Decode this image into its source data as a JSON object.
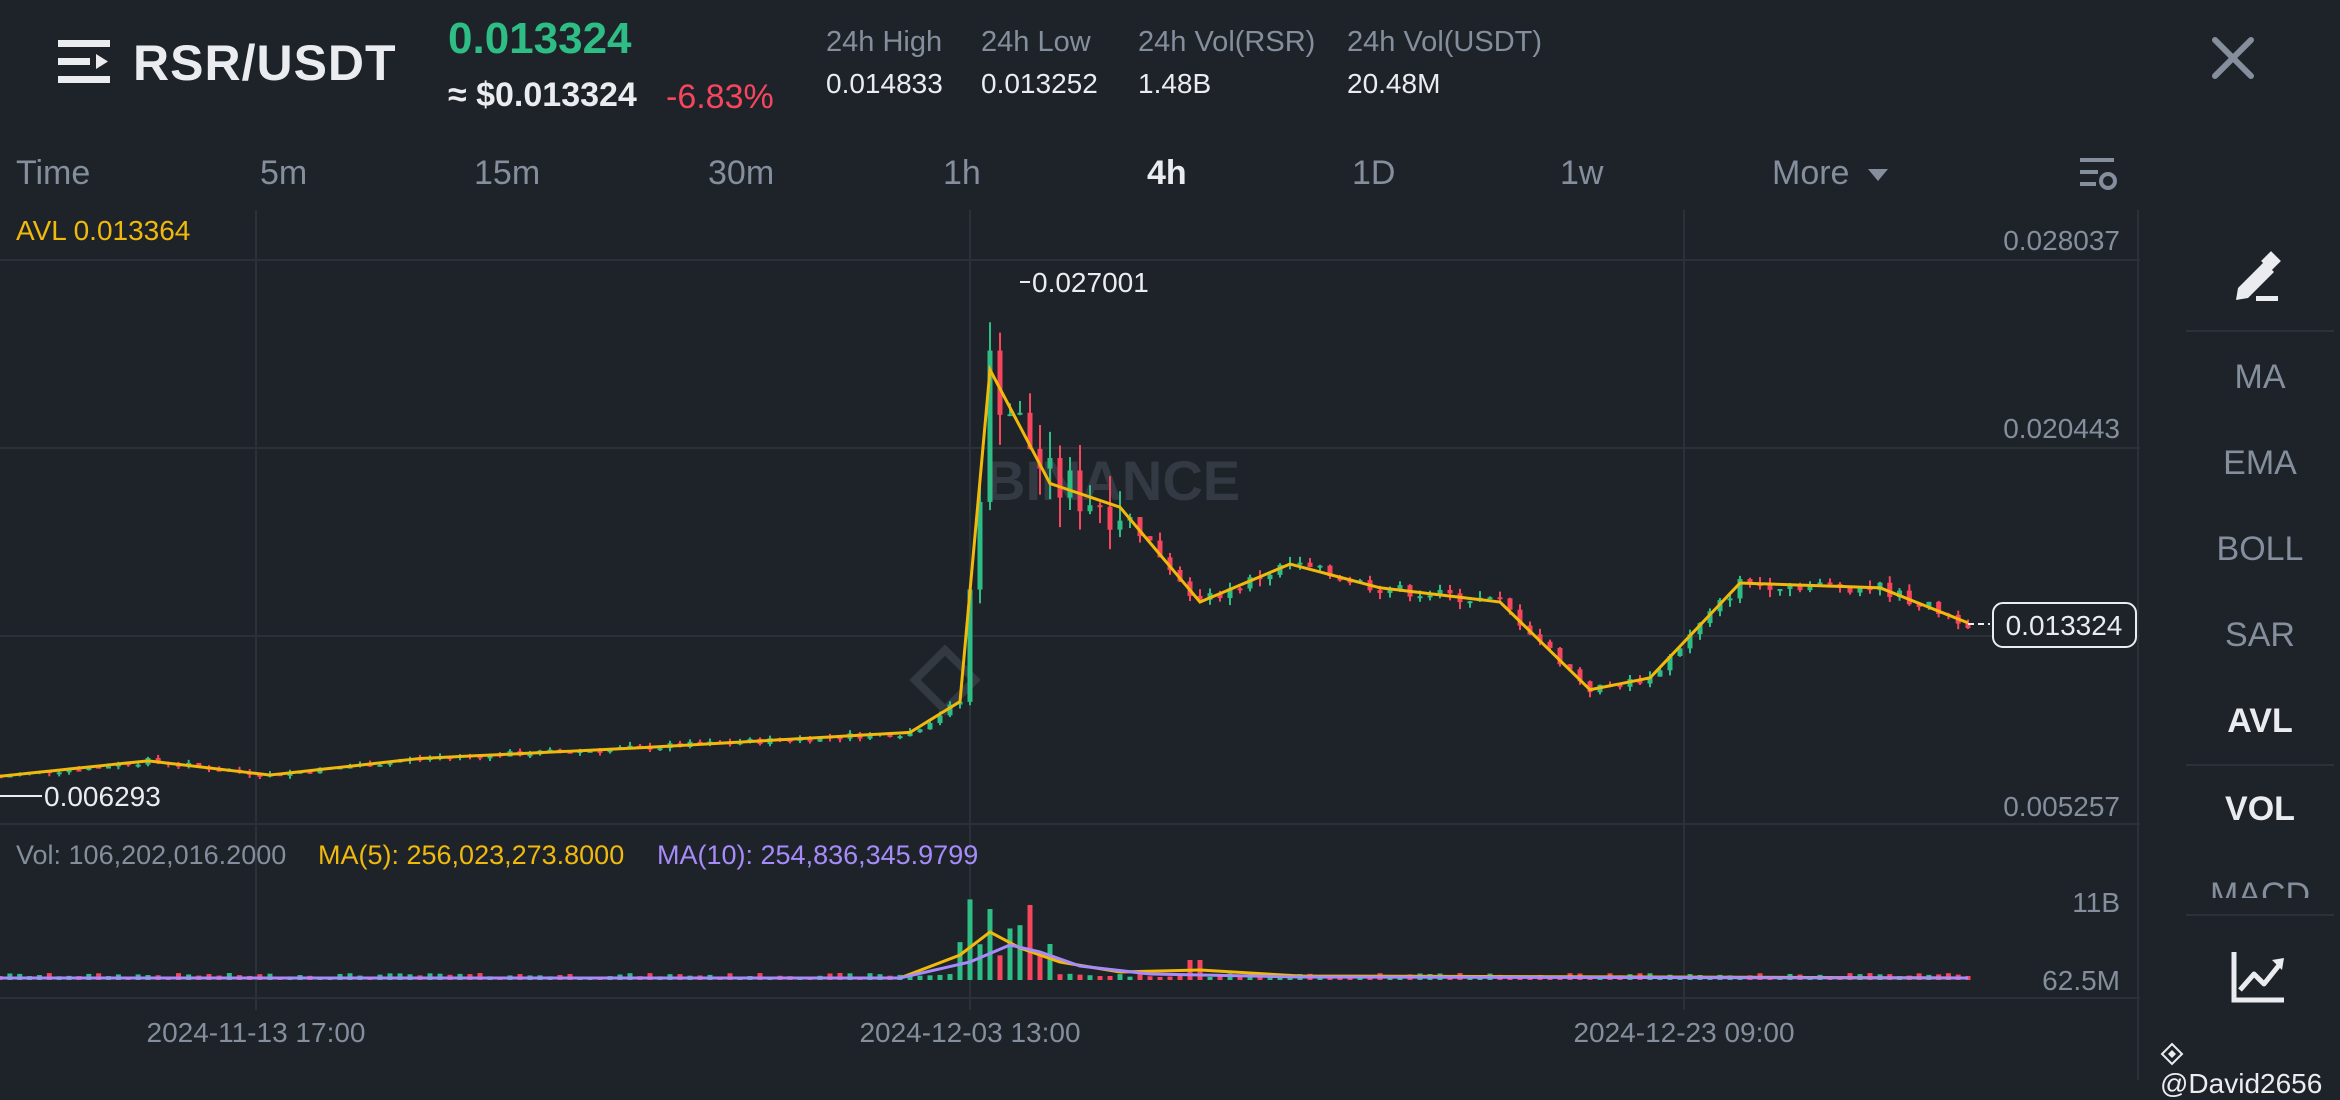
{
  "header": {
    "menu_icon": "menu-icon",
    "pair": "RSR/USDT",
    "last_price": "0.013324",
    "usd_price": "≈ $0.013324",
    "change": "-6.83%",
    "stats": [
      {
        "label": "24h High",
        "value": "0.014833"
      },
      {
        "label": "24h Low",
        "value": "0.013252"
      },
      {
        "label": "24h Vol(RSR)",
        "value": "1.48B"
      },
      {
        "label": "24h Vol(USDT)",
        "value": "20.48M"
      }
    ],
    "close_icon": "close-icon"
  },
  "intervals": {
    "items": [
      "Time",
      "5m",
      "15m",
      "30m",
      "1h",
      "4h",
      "1D",
      "1w"
    ],
    "active": "4h",
    "more": "More"
  },
  "chart": {
    "avl_label": "AVL 0.013364",
    "watermark": "BINANCE",
    "price_axis": [
      "0.028037",
      "0.020443",
      "0.005257"
    ],
    "high_marker": "0.027001",
    "low_marker": "0.006293",
    "current_price": "0.013324",
    "vol_axis": [
      "11B",
      "62.5M"
    ],
    "vol_legend": {
      "vol": "Vol: 106,202,016.2000",
      "ma5": "MA(5): 256,023,273.8000",
      "ma10": "MA(10): 254,836,345.9799"
    },
    "time_axis": [
      "2024-11-13 17:00",
      "2024-12-03 13:00",
      "2024-12-23 09:00"
    ],
    "colors": {
      "up": "#2ebd85",
      "down": "#f6465d",
      "avl": "#f0b90b",
      "ma10": "#a78bfa"
    }
  },
  "chart_data": {
    "type": "line",
    "title": "",
    "series_name": "AVL",
    "ylim": [
      0.005257,
      0.028037
    ],
    "x": [
      "2024-11-13 17:00",
      "2024-11-17",
      "2024-11-21",
      "2024-11-25",
      "2024-11-29",
      "2024-12-03 05:00",
      "2024-12-03 13:00",
      "2024-12-04",
      "2024-12-05",
      "2024-12-06",
      "2024-12-08",
      "2024-12-10",
      "2024-12-12",
      "2024-12-15",
      "2024-12-18",
      "2024-12-21",
      "2024-12-23 09:00",
      "2024-12-26",
      "2024-12-29"
    ],
    "y": [
      0.00685,
      0.0075,
      0.0069,
      0.0076,
      0.00805,
      0.0087,
      0.01,
      0.024,
      0.0192,
      0.0182,
      0.0142,
      0.0158,
      0.0148,
      0.0142,
      0.0105,
      0.011,
      0.015,
      0.0148,
      0.01332
    ],
    "high": 0.027001,
    "low": 0.006293
  },
  "rail": {
    "draw_icon": "pencil-icon",
    "items": [
      "MA",
      "EMA",
      "BOLL",
      "SAR",
      "AVL",
      "VOL",
      "MACD"
    ],
    "active": [
      "AVL",
      "VOL"
    ],
    "chart_icon": "line-chart-icon"
  },
  "credit": "@David2656"
}
